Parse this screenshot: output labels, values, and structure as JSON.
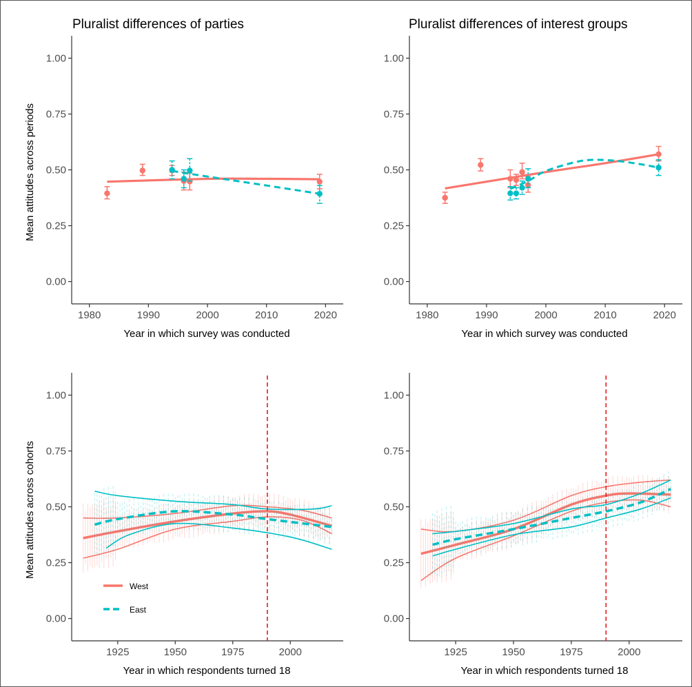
{
  "colors": {
    "west": "#F8766D",
    "east": "#00BFC4",
    "reference_line": "#E31A1C",
    "axis": "#333333"
  },
  "legend": {
    "placement": "bottom-left of bottom-left panel",
    "entries": [
      "West",
      "East"
    ]
  },
  "chart_data": [
    {
      "type": "scatter",
      "title": "Pluralist differences of parties",
      "xlabel": "Year in which survey was conducted",
      "ylabel": "Mean attitudes across periods",
      "xlim": [
        1977,
        2023
      ],
      "ylim": [
        -0.1,
        1.1
      ],
      "xticks": [
        1980,
        1990,
        2000,
        2010,
        2020
      ],
      "xtick_labels": [
        "1980",
        "1990",
        "2000",
        "2010",
        "2020"
      ],
      "yticks": [
        0,
        0.25,
        0.5,
        0.75,
        1
      ],
      "ytick_labels": [
        "0.00",
        "0.25",
        "0.50",
        "0.75",
        "1.00"
      ],
      "grid": false,
      "series": [
        {
          "name": "West",
          "color": "#F8766D",
          "line_style": "solid",
          "points": [
            {
              "x": 1983,
              "y": 0.395,
              "lo": 0.37,
              "hi": 0.425
            },
            {
              "x": 1989,
              "y": 0.497,
              "lo": 0.475,
              "hi": 0.525
            },
            {
              "x": 1994,
              "y": 0.497,
              "lo": 0.475,
              "hi": 0.52
            },
            {
              "x": 1996,
              "y": 0.45,
              "lo": 0.41,
              "hi": 0.49
            },
            {
              "x": 1997,
              "y": 0.448,
              "lo": 0.41,
              "hi": 0.485
            },
            {
              "x": 2019,
              "y": 0.447,
              "lo": 0.415,
              "hi": 0.48
            }
          ],
          "fit": [
            [
              1983,
              0.447
            ],
            [
              2000,
              0.46
            ],
            [
              2010,
              0.46
            ],
            [
              2019,
              0.458
            ]
          ]
        },
        {
          "name": "East",
          "color": "#00BFC4",
          "line_style": "dashed",
          "points": [
            {
              "x": 1994,
              "y": 0.5,
              "lo": 0.46,
              "hi": 0.54
            },
            {
              "x": 1996,
              "y": 0.46,
              "lo": 0.42,
              "hi": 0.5
            },
            {
              "x": 1997,
              "y": 0.497,
              "lo": 0.45,
              "hi": 0.55
            },
            {
              "x": 2019,
              "y": 0.393,
              "lo": 0.35,
              "hi": 0.43
            }
          ],
          "fit": [
            [
              1994,
              0.495
            ],
            [
              2000,
              0.47
            ],
            [
              2010,
              0.43
            ],
            [
              2019,
              0.393
            ]
          ]
        }
      ]
    },
    {
      "type": "scatter",
      "title": "Pluralist differences of interest groups",
      "xlabel": "Year in which survey was conducted",
      "ylabel": "",
      "xlim": [
        1977,
        2023
      ],
      "ylim": [
        -0.1,
        1.1
      ],
      "xticks": [
        1980,
        1990,
        2000,
        2010,
        2020
      ],
      "xtick_labels": [
        "1980",
        "1990",
        "2000",
        "2010",
        "2020"
      ],
      "yticks": [
        0,
        0.25,
        0.5,
        0.75,
        1
      ],
      "ytick_labels": [
        "0.00",
        "0.25",
        "0.50",
        "0.75",
        "1.00"
      ],
      "grid": false,
      "series": [
        {
          "name": "West",
          "color": "#F8766D",
          "line_style": "solid",
          "points": [
            {
              "x": 1983,
              "y": 0.375,
              "lo": 0.35,
              "hi": 0.4
            },
            {
              "x": 1989,
              "y": 0.522,
              "lo": 0.495,
              "hi": 0.55
            },
            {
              "x": 1994,
              "y": 0.46,
              "lo": 0.42,
              "hi": 0.5
            },
            {
              "x": 1995,
              "y": 0.455,
              "lo": 0.43,
              "hi": 0.48
            },
            {
              "x": 1996,
              "y": 0.49,
              "lo": 0.46,
              "hi": 0.53
            },
            {
              "x": 1997,
              "y": 0.432,
              "lo": 0.4,
              "hi": 0.47
            },
            {
              "x": 2019,
              "y": 0.57,
              "lo": 0.54,
              "hi": 0.605
            }
          ],
          "fit": [
            [
              1983,
              0.417
            ],
            [
              2000,
              0.49
            ],
            [
              2010,
              0.53
            ],
            [
              2019,
              0.57
            ]
          ]
        },
        {
          "name": "East",
          "color": "#00BFC4",
          "line_style": "dashed",
          "points": [
            {
              "x": 1994,
              "y": 0.395,
              "lo": 0.365,
              "hi": 0.425
            },
            {
              "x": 1995,
              "y": 0.395,
              "lo": 0.37,
              "hi": 0.42
            },
            {
              "x": 1996,
              "y": 0.42,
              "lo": 0.39,
              "hi": 0.45
            },
            {
              "x": 1997,
              "y": 0.46,
              "lo": 0.42,
              "hi": 0.505
            },
            {
              "x": 2019,
              "y": 0.51,
              "lo": 0.475,
              "hi": 0.545
            }
          ],
          "fit": [
            [
              1994,
              0.415
            ],
            [
              1997,
              0.45
            ],
            [
              2000,
              0.495
            ],
            [
              2005,
              0.535
            ],
            [
              2008,
              0.545
            ],
            [
              2012,
              0.54
            ],
            [
              2016,
              0.525
            ],
            [
              2019,
              0.51
            ]
          ]
        }
      ]
    },
    {
      "type": "line",
      "title": "",
      "xlabel": "Year in which respondents turned 18",
      "ylabel": "Mean attitudes across cohorts",
      "xlim": [
        1905,
        2023
      ],
      "ylim": [
        -0.1,
        1.1
      ],
      "xticks": [
        1925,
        1950,
        1975,
        2000
      ],
      "xtick_labels": [
        "1925",
        "1950",
        "1975",
        "2000"
      ],
      "yticks": [
        0,
        0.25,
        0.5,
        0.75,
        1
      ],
      "ytick_labels": [
        "0.00",
        "0.25",
        "0.50",
        "0.75",
        "1.00"
      ],
      "grid": false,
      "reference_line_x": 1990,
      "series": [
        {
          "name": "West",
          "color": "#F8766D",
          "line_style": "solid",
          "mean": [
            [
              1910,
              0.36
            ],
            [
              1925,
              0.39
            ],
            [
              1950,
              0.435
            ],
            [
              1975,
              0.47
            ],
            [
              1990,
              0.48
            ],
            [
              2000,
              0.465
            ],
            [
              2018,
              0.415
            ]
          ],
          "band_upper": [
            [
              1910,
              0.45
            ],
            [
              1925,
              0.45
            ],
            [
              1950,
              0.47
            ],
            [
              1975,
              0.505
            ],
            [
              1990,
              0.5
            ],
            [
              2005,
              0.485
            ],
            [
              2018,
              0.45
            ]
          ],
          "band_lower": [
            [
              1910,
              0.27
            ],
            [
              1925,
              0.31
            ],
            [
              1950,
              0.4
            ],
            [
              1975,
              0.435
            ],
            [
              1990,
              0.455
            ],
            [
              2005,
              0.44
            ],
            [
              2018,
              0.38
            ]
          ]
        },
        {
          "name": "East",
          "color": "#00BFC4",
          "line_style": "dashed",
          "mean": [
            [
              1915,
              0.42
            ],
            [
              1925,
              0.445
            ],
            [
              1950,
              0.48
            ],
            [
              1975,
              0.465
            ],
            [
              1990,
              0.445
            ],
            [
              2018,
              0.41
            ]
          ],
          "band_upper": [
            [
              1915,
              0.57
            ],
            [
              1925,
              0.55
            ],
            [
              1950,
              0.525
            ],
            [
              1975,
              0.51
            ],
            [
              1990,
              0.49
            ],
            [
              2010,
              0.49
            ],
            [
              2018,
              0.505
            ]
          ],
          "band_lower": [
            [
              1920,
              0.315
            ],
            [
              1930,
              0.375
            ],
            [
              1950,
              0.425
            ],
            [
              1975,
              0.405
            ],
            [
              2000,
              0.365
            ],
            [
              2018,
              0.31
            ]
          ]
        }
      ]
    },
    {
      "type": "line",
      "title": "",
      "xlabel": "Year in which respondents turned 18",
      "ylabel": "",
      "xlim": [
        1905,
        2023
      ],
      "ylim": [
        -0.1,
        1.1
      ],
      "xticks": [
        1925,
        1950,
        1975,
        2000
      ],
      "xtick_labels": [
        "1925",
        "1950",
        "1975",
        "2000"
      ],
      "yticks": [
        0,
        0.25,
        0.5,
        0.75,
        1
      ],
      "ytick_labels": [
        "0.00",
        "0.25",
        "0.50",
        "0.75",
        "1.00"
      ],
      "grid": false,
      "reference_line_x": 1990,
      "series": [
        {
          "name": "West",
          "color": "#F8766D",
          "line_style": "solid",
          "mean": [
            [
              1910,
              0.29
            ],
            [
              1925,
              0.33
            ],
            [
              1950,
              0.4
            ],
            [
              1975,
              0.51
            ],
            [
              1990,
              0.55
            ],
            [
              2000,
              0.56
            ],
            [
              2018,
              0.555
            ]
          ],
          "band_upper": [
            [
              1910,
              0.4
            ],
            [
              1925,
              0.39
            ],
            [
              1950,
              0.44
            ],
            [
              1975,
              0.55
            ],
            [
              1990,
              0.59
            ],
            [
              2005,
              0.61
            ],
            [
              2018,
              0.62
            ]
          ],
          "band_lower": [
            [
              1910,
              0.17
            ],
            [
              1925,
              0.27
            ],
            [
              1950,
              0.37
            ],
            [
              1975,
              0.48
            ],
            [
              1990,
              0.52
            ],
            [
              2005,
              0.53
            ],
            [
              2018,
              0.5
            ]
          ]
        },
        {
          "name": "East",
          "color": "#00BFC4",
          "line_style": "dashed",
          "mean": [
            [
              1915,
              0.33
            ],
            [
              1925,
              0.355
            ],
            [
              1950,
              0.4
            ],
            [
              1975,
              0.45
            ],
            [
              1990,
              0.48
            ],
            [
              2005,
              0.52
            ],
            [
              2018,
              0.58
            ]
          ],
          "band_upper": [
            [
              1915,
              0.38
            ],
            [
              1925,
              0.39
            ],
            [
              1950,
              0.425
            ],
            [
              1975,
              0.49
            ],
            [
              1990,
              0.51
            ],
            [
              2005,
              0.56
            ],
            [
              2018,
              0.62
            ]
          ],
          "band_lower": [
            [
              1915,
              0.28
            ],
            [
              1925,
              0.31
            ],
            [
              1950,
              0.375
            ],
            [
              1975,
              0.41
            ],
            [
              1990,
              0.45
            ],
            [
              2005,
              0.49
            ],
            [
              2018,
              0.54
            ]
          ]
        }
      ]
    }
  ]
}
